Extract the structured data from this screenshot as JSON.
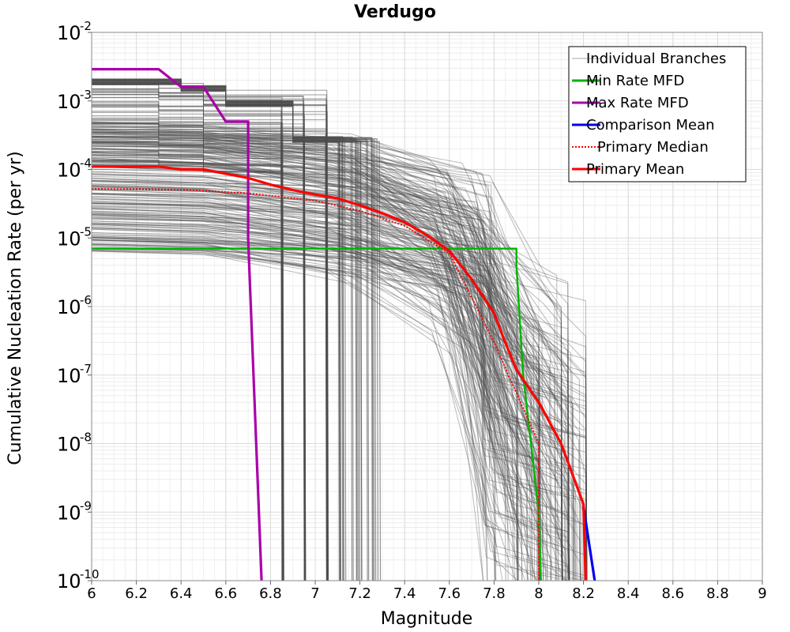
{
  "chart_data": {
    "type": "line",
    "title": "Verdugo",
    "xlabel": "Magnitude",
    "ylabel": "Cumulative Nucleation Rate (per yr)",
    "xlim": [
      6,
      9
    ],
    "ylim": [
      1e-10,
      0.01
    ],
    "yscale": "log",
    "grid": true,
    "legend_position": "top-right",
    "x_ticks": [
      "6",
      "6.2",
      "6.4",
      "6.6",
      "6.8",
      "7",
      "7.2",
      "7.4",
      "7.6",
      "7.8",
      "8",
      "8.2",
      "8.4",
      "8.6",
      "8.8",
      "9"
    ],
    "y_ticks": [
      {
        "value": 1e-10,
        "base": "10",
        "exp": "-10"
      },
      {
        "value": 1e-09,
        "base": "10",
        "exp": "-9"
      },
      {
        "value": 1e-08,
        "base": "10",
        "exp": "-8"
      },
      {
        "value": 1e-07,
        "base": "10",
        "exp": "-7"
      },
      {
        "value": 1e-06,
        "base": "10",
        "exp": "-6"
      },
      {
        "value": 1e-05,
        "base": "10",
        "exp": "-5"
      },
      {
        "value": 0.0001,
        "base": "10",
        "exp": "-4"
      },
      {
        "value": 0.001,
        "base": "10",
        "exp": "-3"
      },
      {
        "value": 0.01,
        "base": "10",
        "exp": "-2"
      }
    ],
    "series": [
      {
        "name": "Min Rate MFD",
        "color": "#00b400",
        "style": "solid",
        "x": [
          6.0,
          7.9,
          7.9,
          7.93,
          8.0,
          8.01
        ],
        "y": [
          7e-06,
          7e-06,
          4e-06,
          1e-07,
          1e-09,
          1e-10
        ]
      },
      {
        "name": "Max Rate MFD",
        "color": "#aa00aa",
        "style": "solid",
        "x": [
          6.0,
          6.3,
          6.4,
          6.5,
          6.6,
          6.7,
          6.7,
          6.76
        ],
        "y": [
          0.0029,
          0.0029,
          0.0016,
          0.0016,
          0.0005,
          0.0005,
          1e-05,
          1e-10
        ]
      },
      {
        "name": "Comparison Mean",
        "color": "#0000ee",
        "style": "solid",
        "x": [
          8.2,
          8.25
        ],
        "y": [
          1.2e-09,
          1e-10
        ]
      },
      {
        "name": "Primary Median",
        "color": "#ff0000",
        "style": "dotted",
        "x": [
          6.0,
          6.4,
          6.7,
          7.0,
          7.2,
          7.4,
          7.6,
          7.8,
          8.0,
          8.0
        ],
        "y": [
          5.2e-05,
          5.1e-05,
          4.5e-05,
          3.5e-05,
          2.5e-05,
          1.5e-05,
          6e-06,
          3e-07,
          1e-08,
          1e-10
        ]
      },
      {
        "name": "Primary Mean",
        "color": "#ff0000",
        "style": "solid",
        "x": [
          6.0,
          6.2,
          6.3,
          6.4,
          6.5,
          6.7,
          6.8,
          6.9,
          7.0,
          7.1,
          7.2,
          7.3,
          7.4,
          7.5,
          7.6,
          7.7,
          7.8,
          7.85,
          7.9,
          8.0,
          8.1,
          8.2,
          8.21
        ],
        "y": [
          0.00011,
          0.00011,
          0.00011,
          0.0001,
          0.0001,
          7.5e-05,
          6e-05,
          5e-05,
          4.3e-05,
          3.8e-05,
          3e-05,
          2.3e-05,
          1.7e-05,
          1.1e-05,
          6.5e-06,
          2.5e-06,
          8e-07,
          3e-07,
          1.2e-07,
          4e-08,
          1e-08,
          1.3e-09,
          1e-10
        ]
      }
    ],
    "legend": [
      {
        "label": "Individual Branches",
        "color": "#aaaaaa",
        "style": "thin"
      },
      {
        "label": "Min Rate MFD",
        "color": "#00b400",
        "style": "solid"
      },
      {
        "label": "Max Rate MFD",
        "color": "#aa00aa",
        "style": "solid"
      },
      {
        "label": "Comparison Mean",
        "color": "#0000ee",
        "style": "solid"
      },
      {
        "label": "Primary Median",
        "color": "#ff0000",
        "style": "dotted"
      },
      {
        "label": "Primary Mean",
        "color": "#ff0000",
        "style": "solid"
      }
    ]
  }
}
